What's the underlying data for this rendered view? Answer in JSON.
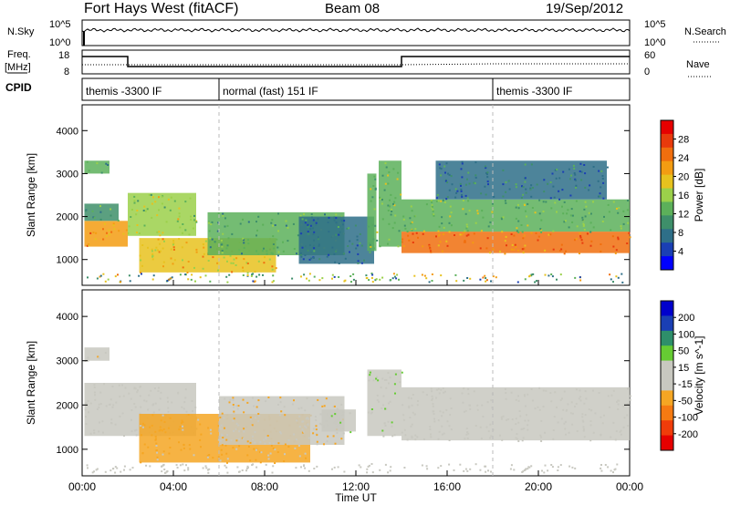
{
  "header": {
    "title": "Fort Hays West (fitACF)",
    "beam": "Beam 08",
    "date": "19/Sep/2012"
  },
  "strips": {
    "nsky": {
      "left_label": "N.Sky",
      "right_label": "N.Search",
      "left_ticks": [
        "10^5",
        "10^0"
      ],
      "right_ticks": [
        "10^5",
        "10^0"
      ]
    },
    "freq": {
      "left_label_1": "Freq.",
      "left_label_2": "[MHz]",
      "right_label": "Nave",
      "left_ticks": [
        "18",
        "8"
      ],
      "right_ticks": [
        "60",
        "0"
      ]
    },
    "cpid": {
      "label": "CPID",
      "segments": [
        {
          "start_hour": 0.0,
          "text": "themis -3300 IF"
        },
        {
          "start_hour": 6.0,
          "text": "normal (fast) 151 IF"
        },
        {
          "start_hour": 18.0,
          "text": "themis -3300 IF"
        }
      ]
    }
  },
  "chart_data": [
    {
      "type": "heatmap",
      "panel": "power",
      "xlabel": "",
      "ylabel": "Slant Range [km]",
      "x_range_hours": [
        0,
        24
      ],
      "ylim": [
        400,
        4600
      ],
      "yticks": [
        "1000",
        "2000",
        "3000",
        "4000"
      ],
      "colorbar": {
        "label": "Power [dB]",
        "ticks": [
          "28",
          "24",
          "20",
          "16",
          "12",
          "8",
          "4"
        ],
        "range": [
          0,
          32
        ],
        "colors": [
          "#0000ff",
          "#1a3fb4",
          "#2e6f88",
          "#3e8f6a",
          "#5cb05a",
          "#9bd04a",
          "#e7c21e",
          "#f39c12",
          "#f06e0e",
          "#e83a0c",
          "#e60000"
        ]
      },
      "bands": [
        {
          "hours": [
            0.1,
            2.0
          ],
          "range_km": [
            1300,
            1900
          ],
          "dB": 22
        },
        {
          "hours": [
            0.1,
            1.6
          ],
          "range_km": [
            1900,
            2300
          ],
          "dB": 10
        },
        {
          "hours": [
            0.1,
            1.2
          ],
          "range_km": [
            3000,
            3300
          ],
          "dB": 12
        },
        {
          "hours": [
            2.0,
            5.0
          ],
          "range_km": [
            1550,
            2550
          ],
          "dB": 16
        },
        {
          "hours": [
            2.5,
            8.5
          ],
          "range_km": [
            700,
            1500
          ],
          "dB": 20
        },
        {
          "hours": [
            5.5,
            11.5
          ],
          "range_km": [
            1100,
            2100
          ],
          "dB": 12
        },
        {
          "hours": [
            9.5,
            12.8
          ],
          "range_km": [
            900,
            2000
          ],
          "dB": 8
        },
        {
          "hours": [
            12.5,
            12.9
          ],
          "range_km": [
            1200,
            3000
          ],
          "dB": 14
        },
        {
          "hours": [
            13.0,
            14.0
          ],
          "range_km": [
            1300,
            3300
          ],
          "dB": 14
        },
        {
          "hours": [
            14.0,
            24.0
          ],
          "range_km": [
            1150,
            1650
          ],
          "dB": 24
        },
        {
          "hours": [
            14.0,
            24.0
          ],
          "range_km": [
            1650,
            2400
          ],
          "dB": 14
        },
        {
          "hours": [
            15.5,
            23.0
          ],
          "range_km": [
            2400,
            3300
          ],
          "dB": 8
        }
      ]
    },
    {
      "type": "heatmap",
      "panel": "velocity",
      "xlabel": "Time UT",
      "ylabel": "Slant Range [km]",
      "x_range_hours": [
        0,
        24
      ],
      "xticks": [
        "00:00",
        "04:00",
        "08:00",
        "12:00",
        "16:00",
        "20:00",
        "00:00"
      ],
      "ylim": [
        400,
        4600
      ],
      "yticks": [
        "1000",
        "2000",
        "3000",
        "4000"
      ],
      "colorbar": {
        "label": "Velocity [m s^-1]",
        "ticks": [
          "200",
          "100",
          "50",
          "15",
          "-15",
          "-50",
          "-100",
          "-200"
        ],
        "range": [
          -250,
          250
        ],
        "colors": [
          "#e60000",
          "#f03c0a",
          "#f57a12",
          "#f5a623",
          "#c8c8c0",
          "#c8c8c0",
          "#66cc33",
          "#2e8f6a",
          "#1a3fb4",
          "#0000cc"
        ]
      },
      "bands": [
        {
          "hours": [
            0.1,
            5.0
          ],
          "range_km": [
            1300,
            2500
          ],
          "ms": 0
        },
        {
          "hours": [
            2.5,
            10.0
          ],
          "range_km": [
            700,
            1800
          ],
          "ms": -60
        },
        {
          "hours": [
            6.0,
            11.5
          ],
          "range_km": [
            1100,
            2200
          ],
          "ms": -40
        },
        {
          "hours": [
            10.5,
            12.0
          ],
          "range_km": [
            1400,
            1900
          ],
          "ms": 40
        },
        {
          "hours": [
            12.5,
            14.0
          ],
          "range_km": [
            1300,
            2800
          ],
          "ms": 40
        },
        {
          "hours": [
            14.0,
            24.0
          ],
          "range_km": [
            1200,
            2400
          ],
          "ms": 0
        },
        {
          "hours": [
            0.1,
            1.2
          ],
          "range_km": [
            3000,
            3300
          ],
          "ms": -30
        }
      ]
    }
  ]
}
